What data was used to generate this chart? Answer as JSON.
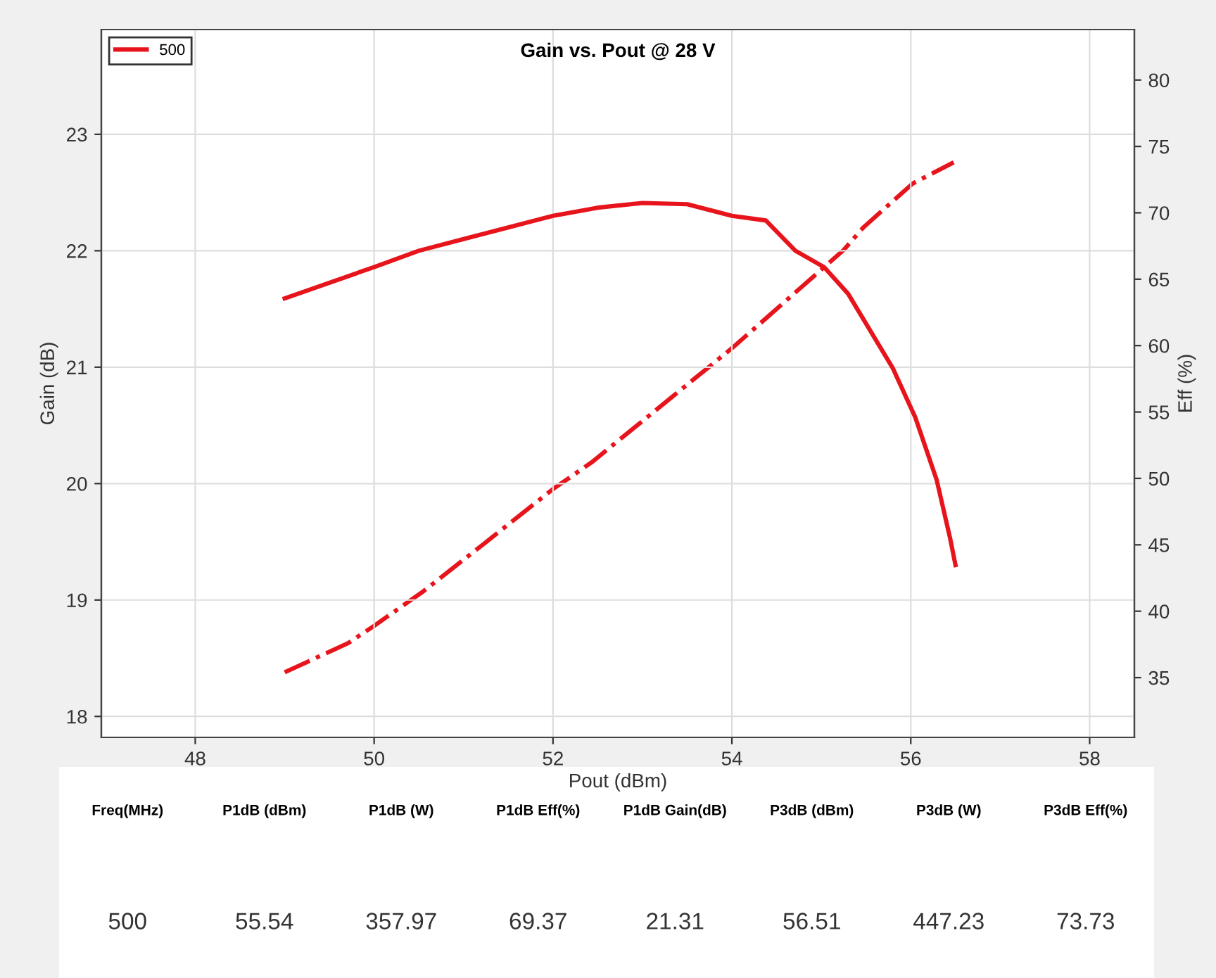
{
  "chart_data": {
    "type": "line",
    "title": "Gain vs. Pout @ 28 V",
    "xlabel": "Pout (dBm)",
    "ylabel": "Gain (dB)",
    "y2label": "Eff (%)",
    "xlim": [
      46.95,
      58.5
    ],
    "xticks": [
      48,
      50,
      52,
      54,
      56,
      58
    ],
    "ylim": [
      17.82,
      23.9
    ],
    "yticks": [
      18,
      19,
      20,
      21,
      22,
      23
    ],
    "y2lim": [
      30.5,
      83.8
    ],
    "y2ticks": [
      35,
      40,
      45,
      50,
      55,
      60,
      65,
      70,
      75,
      80
    ],
    "grid": true,
    "legend": "top left",
    "marker": "none",
    "series": [
      {
        "name": "500",
        "color": "#e8141c",
        "line_style": "solid",
        "x": [
          49.0,
          50.0,
          50.5,
          51.0,
          51.5,
          52.0,
          52.5,
          53.0,
          53.5,
          54.0,
          54.38,
          54.71,
          55.03,
          55.3,
          55.8,
          56.05,
          56.29,
          56.44,
          56.5
        ],
        "values": [
          21.59,
          21.86,
          22.0,
          22.1,
          22.2,
          22.3,
          22.37,
          22.41,
          22.4,
          22.3,
          22.26,
          22.0,
          21.86,
          21.63,
          20.99,
          20.57,
          20.03,
          19.53,
          19.3
        ]
      },
      {
        "color": "#e8141c",
        "line_style": "dashed",
        "axis": "y2",
        "x": [
          49.0,
          49.71,
          50.0,
          50.55,
          51.25,
          52.0,
          52.43,
          54.0,
          55.25,
          55.47,
          56.02,
          56.48
        ],
        "values": [
          35.4,
          37.6,
          38.9,
          41.5,
          45.2,
          49.2,
          51.2,
          59.8,
          67.2,
          68.9,
          72.2,
          73.8
        ]
      }
    ],
    "annotations": [
      "Freq(MHz)",
      "P1dB (dBm)",
      "P1dB (W)",
      "P1dB Eff(%)",
      "P1dB Gain(dB)",
      "P3dB (dBm)",
      "P3dB (W)",
      "P3dB Eff(%)",
      "500",
      "55.54",
      "357.97",
      "69.37",
      "21.31",
      "56.51",
      "447.23",
      "73.73"
    ]
  }
}
